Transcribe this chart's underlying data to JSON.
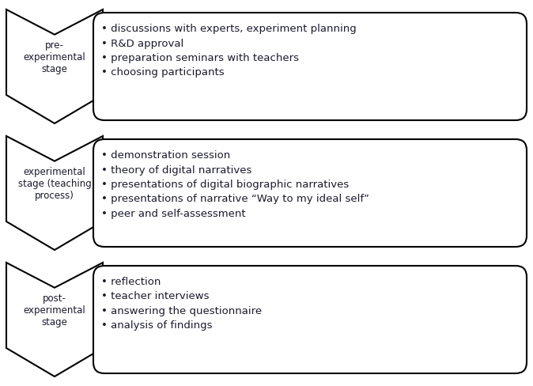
{
  "stages": [
    {
      "label": "pre-\nexperimental\nstage",
      "items": [
        {
          "text": "• discussions with experts, experiment planning",
          "color": "#1a1a2e"
        },
        {
          "text": "• R&D approval",
          "color": "#1a1a2e"
        },
        {
          "text": "• preparation seminars with teachers",
          "color": "#1a1a2e"
        },
        {
          "text": "• choosing participants",
          "color": "#1a1a2e"
        }
      ]
    },
    {
      "label": "experimental\nstage (teaching\nprocess)",
      "items": [
        {
          "text": "• demonstration session",
          "color": "#1a1a2e"
        },
        {
          "text": "• theory of digital narratives",
          "color": "#1a1a2e"
        },
        {
          "text": "• presentations of digital biographic narratives",
          "color": "#1a1a2e"
        },
        {
          "text": "• presentations of narrative “Way to my ideal self”",
          "color": "#1a1a2e"
        },
        {
          "text": "• peer and self-assessment",
          "color": "#1a1a2e"
        }
      ]
    },
    {
      "label": "post-\nexperimental\nstage",
      "items": [
        {
          "text": "• reflection",
          "color": "#1a1a2e"
        },
        {
          "text": "• teacher interviews",
          "color": "#1a1a2e"
        },
        {
          "text": "• answering the questionnaire",
          "color": "#1a1a2e"
        },
        {
          "text": "• analysis of findings",
          "color": "#1a1a2e"
        }
      ]
    }
  ],
  "background_color": "#ffffff",
  "arrow_fill": "#ffffff",
  "arrow_edge": "#000000",
  "box_fill": "#ffffff",
  "box_edge": "#000000",
  "label_color": "#1a1a2e",
  "label_fontsize": 8.5,
  "item_fontsize": 9.5,
  "fig_width": 6.74,
  "fig_height": 4.88
}
